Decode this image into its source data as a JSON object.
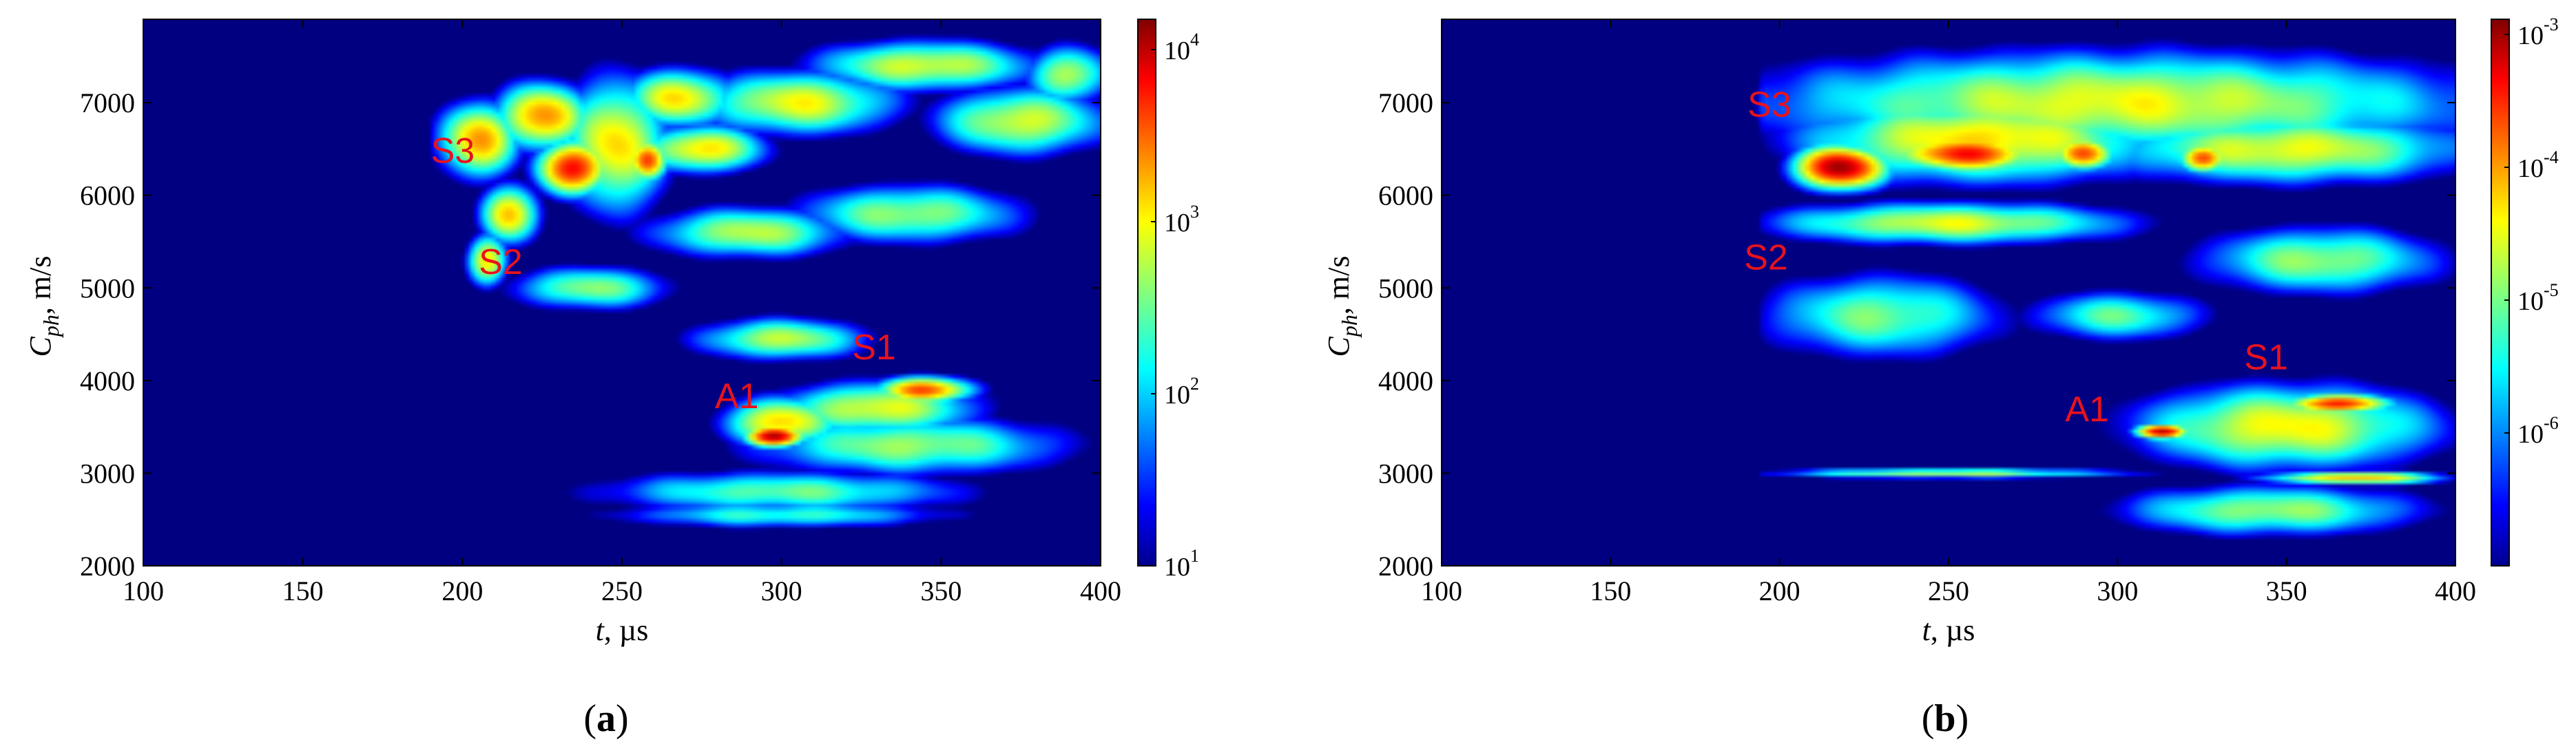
{
  "chart_data": [
    {
      "type": "heatmap",
      "panel_label": "a",
      "xlabel": "t, µs",
      "ylabel": "C_ph, m/s",
      "xlim": [
        100,
        400
      ],
      "ylim": [
        2000,
        7900
      ],
      "xticks": [
        100,
        150,
        200,
        250,
        300,
        350,
        400
      ],
      "yticks": [
        2000,
        3000,
        4000,
        5000,
        6000,
        7000
      ],
      "colorbar": {
        "scale": "log",
        "range": [
          10,
          15000
        ],
        "ticks": [
          {
            "value": 10,
            "base": "10",
            "exp": "1"
          },
          {
            "value": 100,
            "base": "10",
            "exp": "2"
          },
          {
            "value": 1000,
            "base": "10",
            "exp": "3"
          },
          {
            "value": 10000,
            "base": "10",
            "exp": "4"
          }
        ]
      },
      "annotations": [
        {
          "text": "S3",
          "x": 197,
          "y": 6350
        },
        {
          "text": "S2",
          "x": 212,
          "y": 5150
        },
        {
          "text": "S1",
          "x": 329,
          "y": 4230
        },
        {
          "text": "A1",
          "x": 286,
          "y": 3700
        }
      ],
      "blobs": [
        {
          "x": 205,
          "y": 6600,
          "sx": 14,
          "sy": 450,
          "v": 4.15
        },
        {
          "x": 225,
          "y": 6850,
          "sx": 16,
          "sy": 400,
          "v": 4.25
        },
        {
          "x": 215,
          "y": 5800,
          "sx": 10,
          "sy": 350,
          "v": 4.1
        },
        {
          "x": 208,
          "y": 5300,
          "sx": 7,
          "sy": 300,
          "v": 4.0
        },
        {
          "x": 235,
          "y": 6300,
          "sx": 13,
          "sy": 320,
          "v": 4.6
        },
        {
          "x": 258,
          "y": 6380,
          "sx": 7,
          "sy": 250,
          "v": 4.35
        },
        {
          "x": 248,
          "y": 6550,
          "sx": 18,
          "sy": 800,
          "v": 4.0
        },
        {
          "x": 268,
          "y": 7050,
          "sx": 20,
          "sy": 350,
          "v": 3.95
        },
        {
          "x": 275,
          "y": 6500,
          "sx": 22,
          "sy": 280,
          "v": 4.0
        },
        {
          "x": 305,
          "y": 7000,
          "sx": 35,
          "sy": 380,
          "v": 3.85
        },
        {
          "x": 345,
          "y": 7400,
          "sx": 40,
          "sy": 300,
          "v": 3.8
        },
        {
          "x": 375,
          "y": 6800,
          "sx": 30,
          "sy": 400,
          "v": 3.8
        },
        {
          "x": 390,
          "y": 7300,
          "sx": 15,
          "sy": 350,
          "v": 3.7
        },
        {
          "x": 290,
          "y": 5600,
          "sx": 35,
          "sy": 300,
          "v": 3.7
        },
        {
          "x": 340,
          "y": 5800,
          "sx": 40,
          "sy": 350,
          "v": 3.6
        },
        {
          "x": 240,
          "y": 5000,
          "sx": 28,
          "sy": 260,
          "v": 3.55
        },
        {
          "x": 300,
          "y": 4450,
          "sx": 30,
          "sy": 250,
          "v": 3.7
        },
        {
          "x": 298,
          "y": 3400,
          "sx": 10,
          "sy": 130,
          "v": 4.95
        },
        {
          "x": 300,
          "y": 3550,
          "sx": 20,
          "sy": 300,
          "v": 4.05
        },
        {
          "x": 345,
          "y": 3900,
          "sx": 17,
          "sy": 160,
          "v": 4.4
        },
        {
          "x": 330,
          "y": 3700,
          "sx": 35,
          "sy": 320,
          "v": 3.85
        },
        {
          "x": 340,
          "y": 3300,
          "sx": 55,
          "sy": 350,
          "v": 3.6
        },
        {
          "x": 300,
          "y": 2800,
          "sx": 65,
          "sy": 250,
          "v": 3.45
        },
        {
          "x": 300,
          "y": 2550,
          "sx": 60,
          "sy": 160,
          "v": 3.3
        }
      ]
    },
    {
      "type": "heatmap",
      "panel_label": "b",
      "xlabel": "t, µs",
      "ylabel": "C_ph, m/s",
      "xlim": [
        100,
        400
      ],
      "ylim": [
        2000,
        7900
      ],
      "xticks": [
        100,
        150,
        200,
        250,
        300,
        350,
        400
      ],
      "yticks": [
        2000,
        3000,
        4000,
        5000,
        6000,
        7000
      ],
      "colorbar": {
        "scale": "log",
        "range": [
          1e-07,
          0.0013
        ],
        "ticks": [
          {
            "value": 1e-06,
            "base": "10",
            "exp": "-6"
          },
          {
            "value": 1e-05,
            "base": "10",
            "exp": "-5"
          },
          {
            "value": 0.0001,
            "base": "10",
            "exp": "-4"
          },
          {
            "value": 0.001,
            "base": "10",
            "exp": "-3"
          }
        ]
      },
      "annotations": [
        {
          "text": "S3",
          "x": 197,
          "y": 6850
        },
        {
          "text": "S2",
          "x": 196,
          "y": 5200
        },
        {
          "text": "S1",
          "x": 344,
          "y": 4120
        },
        {
          "text": "A1",
          "x": 291,
          "y": 3560
        }
      ],
      "blobs": [
        {
          "x": 218,
          "y": 6300,
          "sx": 15,
          "sy": 260,
          "v": 4.9
        },
        {
          "x": 255,
          "y": 6450,
          "sx": 25,
          "sy": 220,
          "v": 4.55
        },
        {
          "x": 290,
          "y": 6450,
          "sx": 10,
          "sy": 200,
          "v": 4.4
        },
        {
          "x": 325,
          "y": 6400,
          "sx": 8,
          "sy": 180,
          "v": 4.4
        },
        {
          "x": 260,
          "y": 6600,
          "sx": 60,
          "sy": 500,
          "v": 4.0
        },
        {
          "x": 300,
          "y": 7000,
          "sx": 120,
          "sy": 600,
          "v": 3.85
        },
        {
          "x": 350,
          "y": 6500,
          "sx": 60,
          "sy": 400,
          "v": 3.85
        },
        {
          "x": 250,
          "y": 5700,
          "sx": 60,
          "sy": 250,
          "v": 3.8
        },
        {
          "x": 230,
          "y": 4700,
          "sx": 40,
          "sy": 500,
          "v": 3.5
        },
        {
          "x": 300,
          "y": 4700,
          "sx": 30,
          "sy": 300,
          "v": 3.4
        },
        {
          "x": 360,
          "y": 5300,
          "sx": 40,
          "sy": 400,
          "v": 3.6
        },
        {
          "x": 313,
          "y": 3450,
          "sx": 9,
          "sy": 90,
          "v": 4.7
        },
        {
          "x": 365,
          "y": 3750,
          "sx": 18,
          "sy": 120,
          "v": 4.55
        },
        {
          "x": 350,
          "y": 3500,
          "sx": 50,
          "sy": 500,
          "v": 3.9
        },
        {
          "x": 250,
          "y": 3000,
          "sx": 60,
          "sy": 60,
          "v": 3.65
        },
        {
          "x": 370,
          "y": 2950,
          "sx": 30,
          "sy": 80,
          "v": 4.1
        },
        {
          "x": 345,
          "y": 2600,
          "sx": 50,
          "sy": 300,
          "v": 3.6
        }
      ]
    }
  ]
}
